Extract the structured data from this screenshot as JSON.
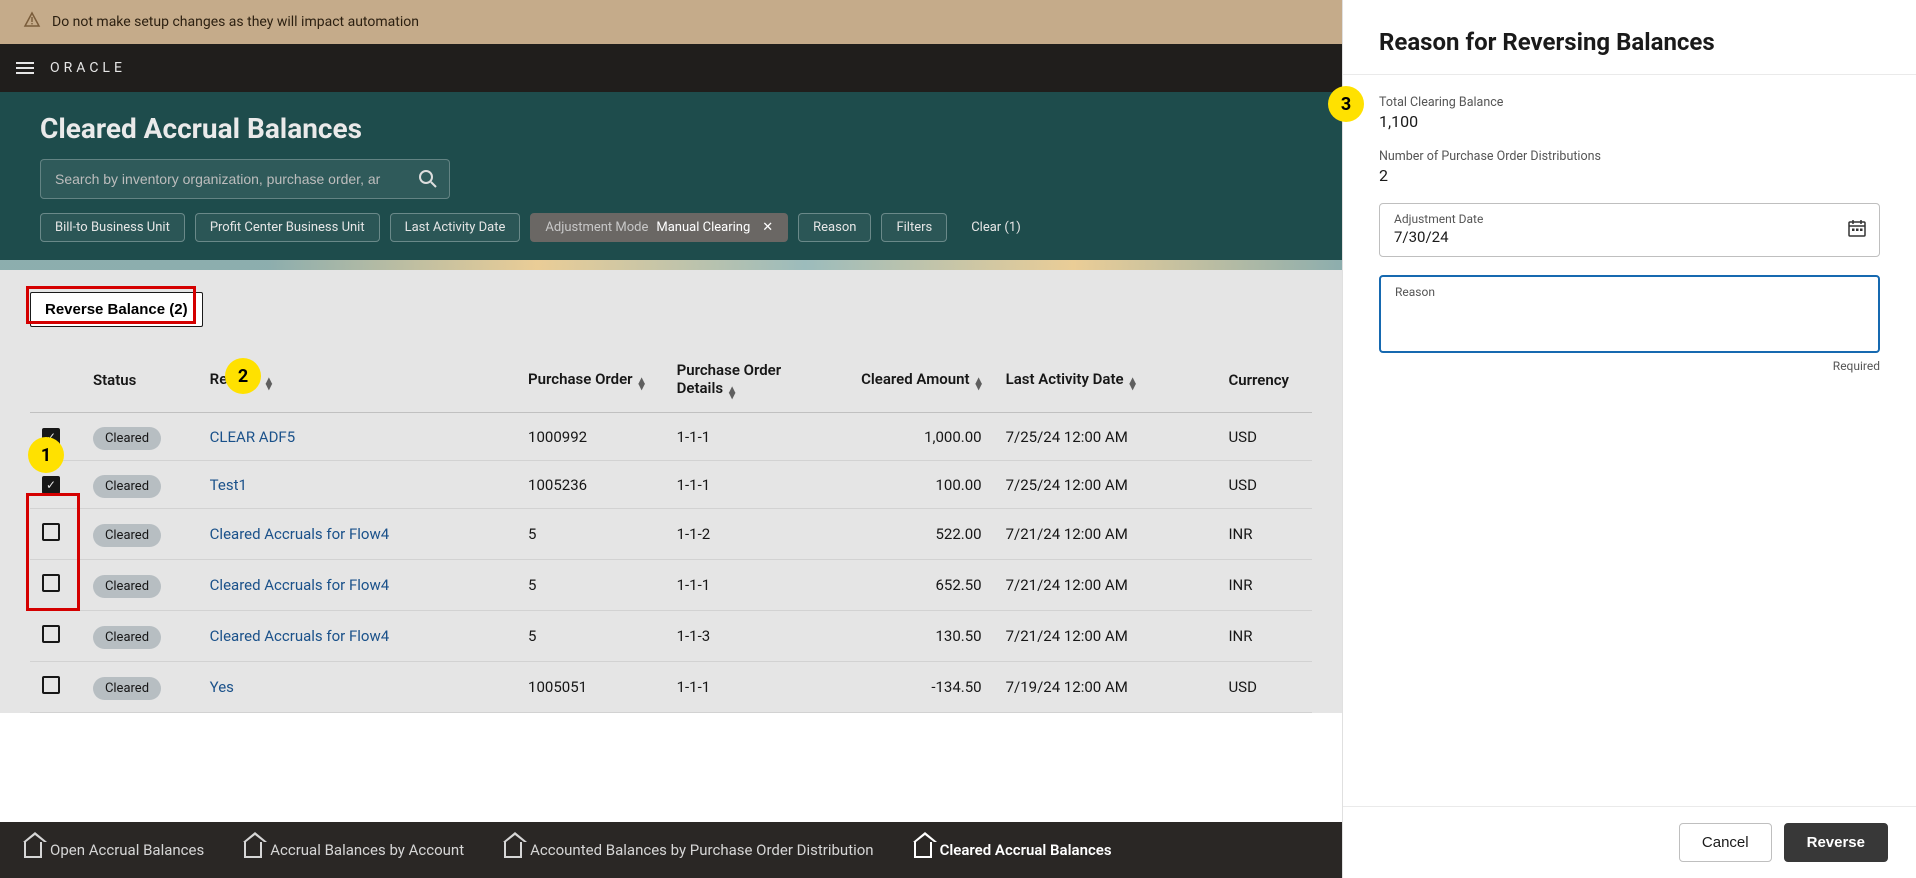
{
  "warning": {
    "text": "Do not make setup changes as they will impact automation"
  },
  "branding": {
    "logo": "ORACLE"
  },
  "page": {
    "title": "Cleared Accrual Balances",
    "search_placeholder": "Search by inventory organization, purchase order, ar",
    "chips": {
      "bill_to": "Bill-to Business Unit",
      "profit_center": "Profit Center Business Unit",
      "last_activity": "Last Activity Date",
      "adj_label": "Adjustment Mode",
      "adj_value": "Manual Clearing",
      "reason": "Reason",
      "filters": "Filters",
      "clear": "Clear (1)"
    },
    "reverse_button": "Reverse Balance (2)"
  },
  "columns": {
    "status": "Status",
    "reason": "Reason",
    "po": "Purchase Order",
    "po_details": "Purchase Order Details",
    "cleared_amount": "Cleared Amount",
    "last_activity": "Last Activity Date",
    "currency": "Currency"
  },
  "rows": [
    {
      "checked": true,
      "status": "Cleared",
      "reason": "CLEAR ADF5",
      "po": "1000992",
      "pod": "1-1-1",
      "amount": "1,000.00",
      "date": "7/25/24 12:00 AM",
      "cur": "USD"
    },
    {
      "checked": true,
      "status": "Cleared",
      "reason": "Test1",
      "po": "1005236",
      "pod": "1-1-1",
      "amount": "100.00",
      "date": "7/25/24 12:00 AM",
      "cur": "USD"
    },
    {
      "checked": false,
      "status": "Cleared",
      "reason": "Cleared Accruals for Flow4",
      "po": "5",
      "pod": "1-1-2",
      "amount": "522.00",
      "date": "7/21/24 12:00 AM",
      "cur": "INR"
    },
    {
      "checked": false,
      "status": "Cleared",
      "reason": "Cleared Accruals for Flow4",
      "po": "5",
      "pod": "1-1-1",
      "amount": "652.50",
      "date": "7/21/24 12:00 AM",
      "cur": "INR"
    },
    {
      "checked": false,
      "status": "Cleared",
      "reason": "Cleared Accruals for Flow4",
      "po": "5",
      "pod": "1-1-3",
      "amount": "130.50",
      "date": "7/21/24 12:00 AM",
      "cur": "INR"
    },
    {
      "checked": false,
      "status": "Cleared",
      "reason": "Yes",
      "po": "1005051",
      "pod": "1-1-1",
      "amount": "-134.50",
      "date": "7/19/24 12:00 AM",
      "cur": "USD"
    }
  ],
  "bottom_nav": {
    "open": "Open Accrual Balances",
    "by_account": "Accrual Balances by Account",
    "by_po_dist": "Accounted Balances by Purchase Order Distribution",
    "cleared": "Cleared Accrual Balances"
  },
  "panel": {
    "title": "Reason for Reversing Balances",
    "total_label": "Total Clearing Balance",
    "total_value": "1,100",
    "numdist_label": "Number of Purchase Order Distributions",
    "numdist_value": "2",
    "adj_date_label": "Adjustment Date",
    "adj_date_value": "7/30/24",
    "reason_label": "Reason",
    "reason_help": "Required",
    "cancel": "Cancel",
    "reverse": "Reverse"
  },
  "annotations": {
    "a1": "1",
    "a2": "2",
    "a3": "3"
  },
  "colors": {
    "warning_bg": "#c5ab8a",
    "header_bg": "#201e1c",
    "page_header_bg": "#1e4c4c",
    "annot_bg": "#ffe100",
    "highlight_border": "#d40000",
    "link": "#1e5b9a",
    "primary_btn": "#383838",
    "focus_border": "#1669b0"
  }
}
